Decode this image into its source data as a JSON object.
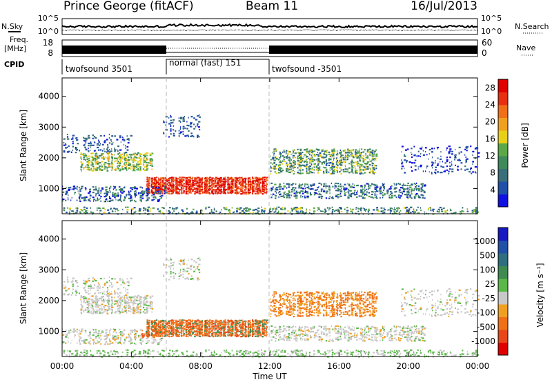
{
  "header": {
    "station": "Prince George (fitACF)",
    "beam": "Beam 11",
    "date": "16/Jul/2013"
  },
  "strip_labels": {
    "nsky": "N.Sky",
    "freq": "Freq.",
    "freq_unit": "[MHz]",
    "cpid": "CPID",
    "nsearch": "N.Search",
    "nave": "Nave"
  },
  "strip_ticks": {
    "noise_left": [
      "10^5",
      "10^0"
    ],
    "noise_right": [
      "10^5",
      "10^0"
    ],
    "freq": [
      "18",
      "8"
    ],
    "nave": [
      "60",
      "0"
    ]
  },
  "cpid_segments": [
    {
      "label": "twofsound 3501",
      "start_hour": 0,
      "end_hour": 6
    },
    {
      "label": "normal (fast) 151",
      "start_hour": 6,
      "end_hour": 12
    },
    {
      "label": "twofsound -3501",
      "start_hour": 12,
      "end_hour": 24
    }
  ],
  "colors": {
    "power": [
      "#1010e0",
      "#2050a8",
      "#3a6e7a",
      "#3f8a5a",
      "#5aa848",
      "#e8d018",
      "#f0a020",
      "#f07018",
      "#e83010",
      "#e00000"
    ],
    "velocity": [
      "#e00000",
      "#e84818",
      "#f07018",
      "#f0a020",
      "#c8c8c8",
      "#5ab848",
      "#3f8a50",
      "#2e6e7e",
      "#2050a8",
      "#1818c0"
    ]
  },
  "chart_data": [
    {
      "type": "heatmap",
      "title": "",
      "quantity": "Power",
      "xlabel": "",
      "ylabel": "Slant Range [km]",
      "xlim": [
        0,
        24
      ],
      "ylim": [
        180,
        4600
      ],
      "x_ticks": [
        "00:00",
        "04:00",
        "08:00",
        "12:00",
        "16:00",
        "20:00",
        "00:00"
      ],
      "y_ticks": [
        1000,
        2000,
        3000,
        4000
      ],
      "colorbar_label": "Power [dB]",
      "colorbar_ticks": [
        "28",
        "24",
        "20",
        "16",
        "12",
        "8",
        "4"
      ],
      "colorbar_range": [
        0,
        30
      ]
    },
    {
      "type": "heatmap",
      "title": "",
      "quantity": "Velocity",
      "xlabel": "Time UT",
      "ylabel": "Slant Range [km]",
      "xlim": [
        0,
        24
      ],
      "ylim": [
        180,
        4600
      ],
      "x_ticks": [
        "00:00",
        "04:00",
        "08:00",
        "12:00",
        "16:00",
        "20:00",
        "00:00"
      ],
      "y_ticks": [
        1000,
        2000,
        3000,
        4000
      ],
      "colorbar_label": "Velocity [m s⁻¹]",
      "colorbar_ticks": [
        "1000",
        "500",
        "100",
        "25",
        "-25",
        "-100",
        "-500",
        "-1000"
      ],
      "colorbar_range": [
        -1000,
        1000
      ]
    }
  ]
}
